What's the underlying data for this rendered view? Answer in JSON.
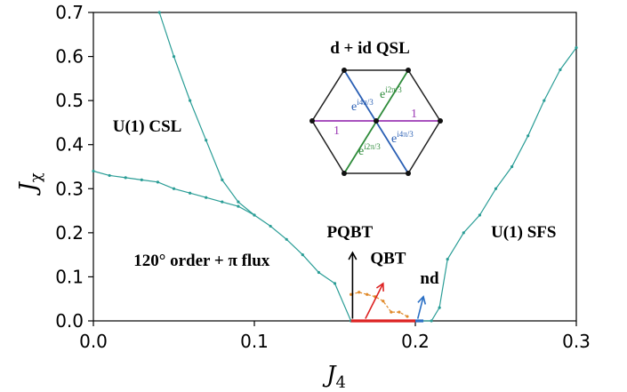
{
  "chart_data": {
    "type": "line",
    "xlabel": "J",
    "xlabel_sub": "4",
    "ylabel": "J",
    "ylabel_sub": "χ",
    "xlim": [
      0.0,
      0.3
    ],
    "ylim": [
      0.0,
      0.7
    ],
    "x_ticks": [
      "0.0",
      "0.1",
      "0.2",
      "0.3"
    ],
    "y_ticks": [
      "0.0",
      "0.1",
      "0.2",
      "0.3",
      "0.4",
      "0.5",
      "0.6",
      "0.7"
    ],
    "series": [
      {
        "color": "#2a9d96",
        "x": [
          0.041,
          0.05,
          0.06,
          0.07,
          0.08,
          0.09,
          0.1,
          0.11,
          0.12,
          0.13,
          0.14,
          0.15,
          0.16
        ],
        "y": [
          0.7,
          0.6,
          0.5,
          0.41,
          0.32,
          0.27,
          0.24,
          0.215,
          0.185,
          0.15,
          0.11,
          0.085,
          0.0
        ]
      },
      {
        "color": "#2a9d96",
        "x": [
          0.0,
          0.01,
          0.02,
          0.03,
          0.04,
          0.05,
          0.06,
          0.07,
          0.08,
          0.09,
          0.1
        ],
        "y": [
          0.34,
          0.33,
          0.325,
          0.32,
          0.315,
          0.3,
          0.29,
          0.28,
          0.27,
          0.26,
          0.24
        ]
      },
      {
        "color": "#2a9d96",
        "x": [
          0.16,
          0.21,
          0.215,
          0.22,
          0.23,
          0.24,
          0.25,
          0.26,
          0.27,
          0.28,
          0.29,
          0.3
        ],
        "y": [
          0.0,
          0.0,
          0.03,
          0.14,
          0.2,
          0.24,
          0.3,
          0.35,
          0.42,
          0.5,
          0.57,
          0.62
        ]
      },
      {
        "color": "#e08a2a",
        "dashed": true,
        "x": [
          0.16,
          0.165,
          0.17,
          0.175,
          0.18,
          0.185,
          0.19,
          0.195
        ],
        "y": [
          0.06,
          0.065,
          0.06,
          0.055,
          0.045,
          0.02,
          0.02,
          0.01
        ]
      },
      {
        "color": "#dd2222",
        "thick": true,
        "x": [
          0.16,
          0.2
        ],
        "y": [
          0.0,
          0.0
        ]
      },
      {
        "color": "#2a6fc4",
        "thick": true,
        "x": [
          0.2,
          0.205
        ],
        "y": [
          0.0,
          0.0
        ]
      }
    ],
    "annotations": [
      {
        "text": "U(1) CSL",
        "x": 0.012,
        "y": 0.43
      },
      {
        "text": "U(1) SFS",
        "x": 0.247,
        "y": 0.19
      },
      {
        "text": "PQBT",
        "x": 0.145,
        "y": 0.19
      },
      {
        "text": "QBT",
        "x": 0.172,
        "y": 0.13
      },
      {
        "text": "nd",
        "x": 0.203,
        "y": 0.085
      },
      {
        "text": "120° order + π flux",
        "x": 0.025,
        "y": 0.125
      }
    ],
    "arrows": [
      {
        "color": "#000000",
        "x0": 0.161,
        "y0": 0.005,
        "x1": 0.161,
        "y1": 0.155
      },
      {
        "color": "#dd2222",
        "x0": 0.169,
        "y0": 0.005,
        "x1": 0.18,
        "y1": 0.085
      },
      {
        "color": "#2a6fc4",
        "x0": 0.2015,
        "y0": 0.005,
        "x1": 0.205,
        "y1": 0.055
      }
    ],
    "inset": {
      "title": "d + id QSL",
      "edges": [
        {
          "label": "1",
          "color": "#9b3ab5"
        },
        {
          "label": "1",
          "color": "#9b3ab5"
        },
        {
          "label": "e^{i4π/3}",
          "color": "#2a5fb4"
        },
        {
          "label": "e^{i4π/3}",
          "color": "#2a5fb4"
        },
        {
          "label": "e^{i2π/3}",
          "color": "#2e8b3a"
        },
        {
          "label": "e^{i2π/3}",
          "color": "#2e8b3a"
        }
      ]
    }
  }
}
